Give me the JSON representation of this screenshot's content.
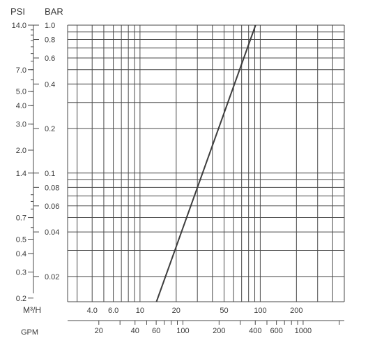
{
  "chart_data": {
    "type": "line",
    "scale": "log-log",
    "grid": true,
    "axes": {
      "psi": {
        "label": "PSI",
        "ticks": [
          "14.0",
          "7.0",
          "5.0",
          "4.0",
          "3.0",
          "2.0",
          "1.4",
          "0.7",
          "0.5",
          "0.4",
          "0.3",
          "0.2"
        ],
        "tick_values": [
          14.0,
          7.0,
          5.0,
          4.0,
          3.0,
          2.0,
          1.4,
          0.7,
          0.5,
          0.4,
          0.3,
          0.2
        ]
      },
      "bar": {
        "label": "BAR",
        "ticks": [
          "1.0",
          "0.8",
          "0.6",
          "0.4",
          "0.2",
          "0.1",
          "0.08",
          "0.06",
          "0.04",
          "0.02"
        ],
        "tick_values": [
          1.0,
          0.8,
          0.6,
          0.4,
          0.2,
          0.1,
          0.08,
          0.06,
          0.04,
          0.02
        ],
        "range": [
          0.0135,
          1.0
        ]
      },
      "m3h": {
        "label": "M³/H",
        "ticks": [
          "4.0",
          "6.0",
          "10",
          "20",
          "50",
          "100",
          "200"
        ],
        "tick_values": [
          4,
          6,
          10,
          20,
          50,
          100,
          200
        ],
        "range": [
          2.5,
          500
        ]
      },
      "gpm": {
        "label": "GPM",
        "ticks": [
          "20",
          "40",
          "60",
          "100",
          "200",
          "400",
          "600",
          "1000"
        ],
        "tick_values": [
          20,
          40,
          60,
          100,
          200,
          400,
          600,
          1000
        ]
      }
    },
    "series": [
      {
        "x_m3h": [
          13.7,
          91.5
        ],
        "y_bar": [
          0.0135,
          1.0
        ]
      }
    ]
  }
}
